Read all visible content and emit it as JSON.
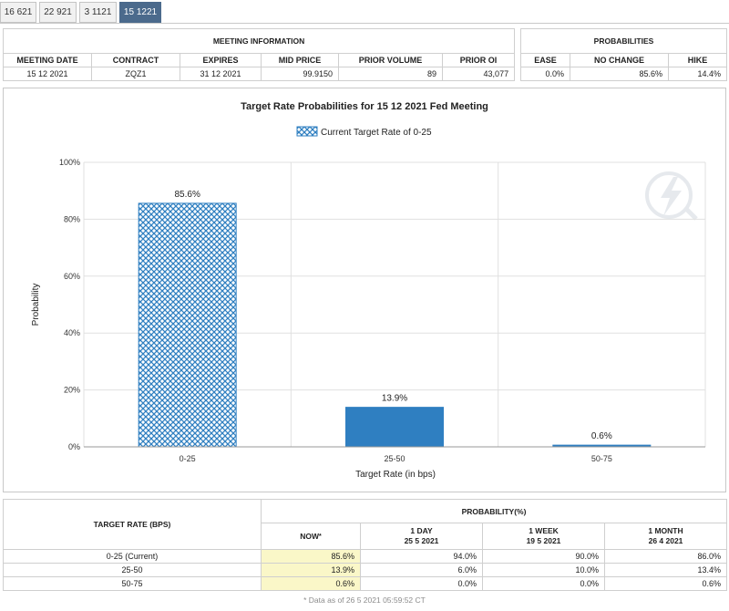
{
  "tabs": [
    {
      "label": "16 621",
      "active": false
    },
    {
      "label": "22 921",
      "active": false
    },
    {
      "label": "3 1121",
      "active": false
    },
    {
      "label": "15 1221",
      "active": true
    }
  ],
  "meeting_info": {
    "title": "MEETING INFORMATION",
    "headers": [
      "MEETING DATE",
      "CONTRACT",
      "EXPIRES",
      "MID PRICE",
      "PRIOR VOLUME",
      "PRIOR OI"
    ],
    "row": [
      "15 12 2021",
      "ZQZ1",
      "31 12 2021",
      "99.9150",
      "89",
      "43,077"
    ]
  },
  "probabilities": {
    "title": "PROBABILITIES",
    "headers": [
      "EASE",
      "NO CHANGE",
      "HIKE"
    ],
    "row": [
      "0.0%",
      "85.6%",
      "14.4%"
    ]
  },
  "chart_data": {
    "type": "bar",
    "title": "Target Rate Probabilities for 15 12 2021 Fed Meeting",
    "legend": "Current Target Rate of 0-25",
    "xlabel": "Target Rate (in bps)",
    "ylabel": "Probability",
    "categories": [
      "0-25",
      "25-50",
      "50-75"
    ],
    "values": [
      85.6,
      13.9,
      0.6
    ],
    "data_labels": [
      "85.6%",
      "13.9%",
      "0.6%"
    ],
    "current_index": 0,
    "ylim": [
      0,
      100
    ],
    "yticks": [
      "0%",
      "20%",
      "40%",
      "60%",
      "80%",
      "100%"
    ],
    "colors": {
      "bar": "#2f7fc1",
      "hatch_bg": "#ffffff",
      "grid": "#e0e0e0"
    }
  },
  "rates_table": {
    "col_target": "TARGET RATE (BPS)",
    "col_group": "PROBABILITY(%)",
    "subheaders": [
      {
        "label": "NOW",
        "date": ""
      },
      {
        "label": "1 DAY",
        "date": "25 5 2021"
      },
      {
        "label": "1 WEEK",
        "date": "19 5 2021"
      },
      {
        "label": "1 MONTH",
        "date": "26 4 2021"
      }
    ],
    "now_mark": "*",
    "rows": [
      {
        "rate": "0-25 (Current)",
        "values": [
          "85.6%",
          "94.0%",
          "90.0%",
          "86.0%"
        ]
      },
      {
        "rate": "25-50",
        "values": [
          "13.9%",
          "6.0%",
          "10.0%",
          "13.4%"
        ]
      },
      {
        "rate": "50-75",
        "values": [
          "0.6%",
          "0.0%",
          "0.0%",
          "0.6%"
        ]
      }
    ]
  },
  "footnote": "* Data as of 26 5 2021 05:59:52 CT"
}
